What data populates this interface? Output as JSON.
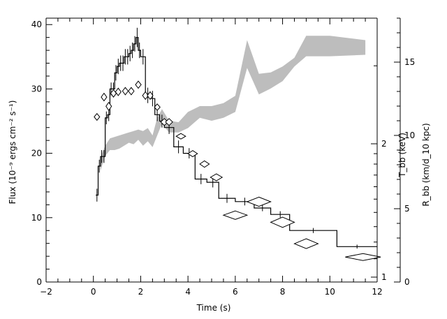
{
  "chart_data": {
    "type": "line",
    "xlabel": "Time (s)",
    "ylabel_left": "Flux (10⁻⁹ ergs cm⁻² s⁻¹)",
    "ylabel_tbb": "T_bb (keV)",
    "ylabel_rbb": "R_bb (km/d_10 kpc)",
    "xlim": [
      -2,
      12
    ],
    "ylim_left": [
      0,
      41
    ],
    "ylim_rbb": [
      0,
      18
    ],
    "x_ticks": [
      "−2",
      "0",
      "2",
      "4",
      "6",
      "8",
      "10",
      "12"
    ],
    "x_tick_values": [
      -2,
      0,
      2,
      4,
      6,
      8,
      10,
      12
    ],
    "y_ticks_left": [
      "0",
      "10",
      "20",
      "30",
      "40"
    ],
    "y_tick_values_left": [
      0,
      10,
      20,
      30,
      40
    ],
    "tbb_ticks": [
      "1",
      "2"
    ],
    "tbb_tick_values": [
      1,
      2
    ],
    "rbb_ticks": [
      "0",
      "5",
      "10",
      "15"
    ],
    "rbb_tick_values": [
      0,
      5,
      10,
      15
    ],
    "tbb_scale": "log",
    "series": [
      {
        "name": "",
        "kind": "flux-step",
        "bins": [
          [
            0.1,
            0.2,
            13.5,
            1.0
          ],
          [
            0.2,
            0.3,
            18.0,
            1.0
          ],
          [
            0.3,
            0.4,
            19.5,
            1.0
          ],
          [
            0.4,
            0.5,
            19.5,
            1.0
          ],
          [
            0.5,
            0.6,
            25.5,
            1.0
          ],
          [
            0.6,
            0.7,
            26.0,
            1.0
          ],
          [
            0.7,
            0.8,
            30.0,
            1.0
          ],
          [
            0.8,
            0.9,
            30.0,
            1.0
          ],
          [
            0.9,
            1.0,
            32.5,
            1.2
          ],
          [
            1.0,
            1.1,
            33.5,
            1.2
          ],
          [
            1.1,
            1.2,
            34.0,
            1.2
          ],
          [
            1.2,
            1.3,
            34.0,
            1.2
          ],
          [
            1.3,
            1.4,
            35.0,
            1.2
          ],
          [
            1.4,
            1.5,
            35.0,
            1.2
          ],
          [
            1.5,
            1.6,
            35.5,
            1.2
          ],
          [
            1.6,
            1.7,
            36.0,
            1.2
          ],
          [
            1.7,
            1.8,
            37.0,
            1.2
          ],
          [
            1.8,
            1.9,
            38.0,
            1.5
          ],
          [
            1.9,
            2.0,
            36.0,
            1.2
          ],
          [
            2.0,
            2.2,
            35.0,
            1.2
          ],
          [
            2.2,
            2.4,
            29.0,
            1.2
          ],
          [
            2.4,
            2.6,
            28.5,
            1.2
          ],
          [
            2.6,
            2.8,
            26.0,
            1.0
          ],
          [
            2.8,
            3.0,
            25.0,
            1.0
          ],
          [
            3.0,
            3.4,
            24.0,
            1.0
          ],
          [
            3.4,
            3.8,
            21.0,
            1.0
          ],
          [
            3.8,
            4.3,
            20.0,
            0.8
          ],
          [
            4.3,
            4.8,
            16.0,
            0.8
          ],
          [
            4.8,
            5.3,
            15.5,
            0.8
          ],
          [
            5.3,
            6.0,
            13.0,
            0.7
          ],
          [
            6.0,
            6.8,
            12.5,
            0.6
          ],
          [
            6.8,
            7.5,
            11.5,
            0.5
          ],
          [
            7.5,
            8.3,
            10.5,
            0.5
          ],
          [
            8.3,
            10.3,
            8.0,
            0.4
          ],
          [
            10.3,
            12.0,
            5.5,
            0.3
          ]
        ]
      },
      {
        "name": "",
        "kind": "tbb-diamonds",
        "points": [
          [
            0.15,
            2.3,
            0.1,
            0.04
          ],
          [
            0.45,
            2.55,
            0.1,
            0.05
          ],
          [
            0.65,
            2.43,
            0.1,
            0.05
          ],
          [
            0.85,
            2.6,
            0.1,
            0.05
          ],
          [
            1.05,
            2.62,
            0.1,
            0.05
          ],
          [
            1.35,
            2.63,
            0.12,
            0.05
          ],
          [
            1.6,
            2.63,
            0.12,
            0.05
          ],
          [
            1.9,
            2.72,
            0.12,
            0.05
          ],
          [
            2.2,
            2.57,
            0.12,
            0.05
          ],
          [
            2.4,
            2.57,
            0.12,
            0.05
          ],
          [
            2.7,
            2.42,
            0.12,
            0.04
          ],
          [
            3.0,
            2.24,
            0.15,
            0.04
          ],
          [
            3.2,
            2.24,
            0.15,
            0.04
          ],
          [
            3.7,
            2.08,
            0.2,
            0.03
          ],
          [
            4.2,
            1.9,
            0.2,
            0.03
          ],
          [
            4.7,
            1.8,
            0.2,
            0.03
          ],
          [
            5.2,
            1.68,
            0.25,
            0.03
          ],
          [
            6.0,
            1.38,
            0.5,
            0.03
          ],
          [
            7.0,
            1.48,
            0.5,
            0.035
          ],
          [
            8.0,
            1.33,
            0.5,
            0.035
          ],
          [
            9.0,
            1.19,
            0.5,
            0.03
          ],
          [
            11.4,
            1.11,
            0.75,
            0.02
          ]
        ]
      },
      {
        "name": "",
        "kind": "rbb-band",
        "x": [
          0.3,
          0.5,
          0.7,
          0.9,
          1.1,
          1.3,
          1.5,
          1.7,
          1.9,
          2.1,
          2.3,
          2.5,
          2.7,
          2.9,
          3.2,
          3.6,
          4.0,
          4.5,
          5.0,
          5.5,
          6.0,
          6.5,
          7.0,
          7.5,
          8.0,
          8.5,
          9.0,
          9.5,
          10.0,
          11.5
        ],
        "lo": [
          7.6,
          8.6,
          9.0,
          9.0,
          9.1,
          9.3,
          9.5,
          9.4,
          9.7,
          9.3,
          9.6,
          9.2,
          10.0,
          10.8,
          10.2,
          10.2,
          10.5,
          11.2,
          11.0,
          11.2,
          11.6,
          14.6,
          12.8,
          13.2,
          13.7,
          14.7,
          15.4,
          15.4,
          15.4,
          15.5
        ],
        "hi": [
          8.5,
          9.3,
          9.8,
          9.9,
          10.0,
          10.1,
          10.2,
          10.3,
          10.4,
          10.3,
          10.5,
          10.0,
          11.2,
          11.8,
          11.0,
          10.9,
          11.6,
          12.0,
          12.0,
          12.2,
          12.7,
          16.5,
          14.2,
          14.3,
          14.7,
          15.3,
          16.8,
          16.8,
          16.8,
          16.5
        ]
      }
    ],
    "colors": {
      "flux": "#000000",
      "tbb": "#000000",
      "rbb_band": "#bdbdbd",
      "axes": "#000000"
    }
  }
}
